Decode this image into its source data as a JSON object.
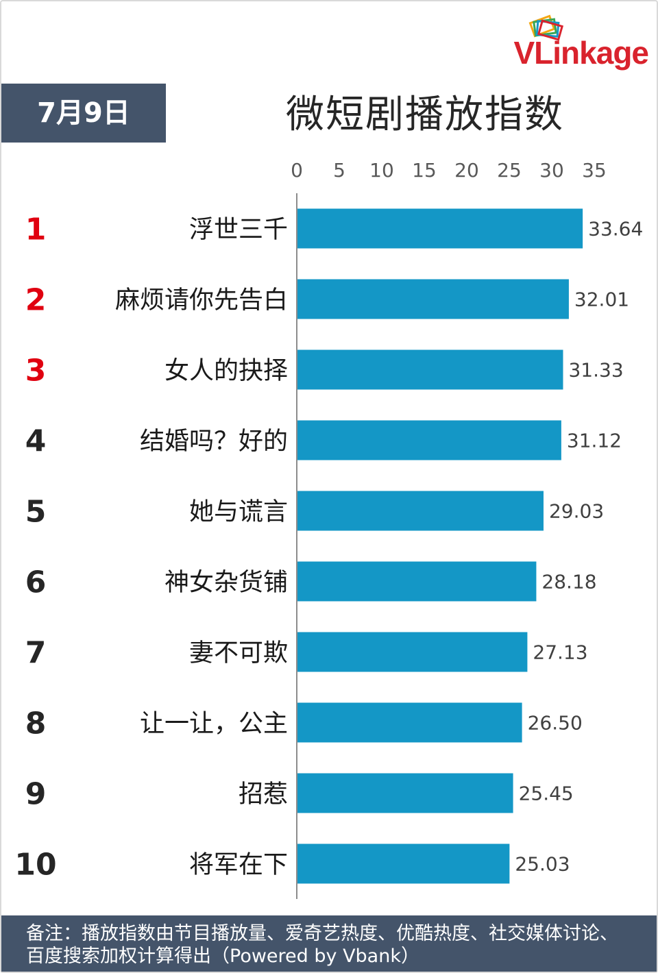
{
  "brand": {
    "logo_text_a": "VLink",
    "logo_text_b": "age",
    "colors": {
      "brand_red": "#d9232d",
      "frame_gray": "#44546a"
    }
  },
  "header": {
    "date": "7月9日",
    "title": "微短剧播放指数"
  },
  "footer": {
    "note": "备注：播放指数由节目播放量、爱奇艺热度、优酷热度、社交媒体讨论、百度搜索加权计算得出（Powered by Vbank）"
  },
  "chart_data": {
    "type": "bar",
    "orientation": "horizontal",
    "title": "微短剧播放指数",
    "xlim": [
      0,
      35
    ],
    "xticks": [
      0,
      5,
      10,
      15,
      20,
      25,
      30,
      35
    ],
    "axis_position": "top",
    "grid": false,
    "bar_color": "#1497c6",
    "rank_highlight_color": "#e00010",
    "ranks": [
      "1",
      "2",
      "3",
      "4",
      "5",
      "6",
      "7",
      "8",
      "9",
      "10"
    ],
    "categories": [
      "浮世三千",
      "麻烦请你先告白",
      "女人的抉择",
      "结婚吗？好的",
      "她与谎言",
      "神女杂货铺",
      "妻不可欺",
      "让一让，公主",
      "招惹",
      "将军在下"
    ],
    "values": [
      33.64,
      32.01,
      31.33,
      31.12,
      29.03,
      28.18,
      27.13,
      26.5,
      25.45,
      25.03
    ],
    "value_labels": [
      "33.64",
      "32.01",
      "31.33",
      "31.12",
      "29.03",
      "28.18",
      "27.13",
      "26.50",
      "25.45",
      "25.03"
    ]
  }
}
